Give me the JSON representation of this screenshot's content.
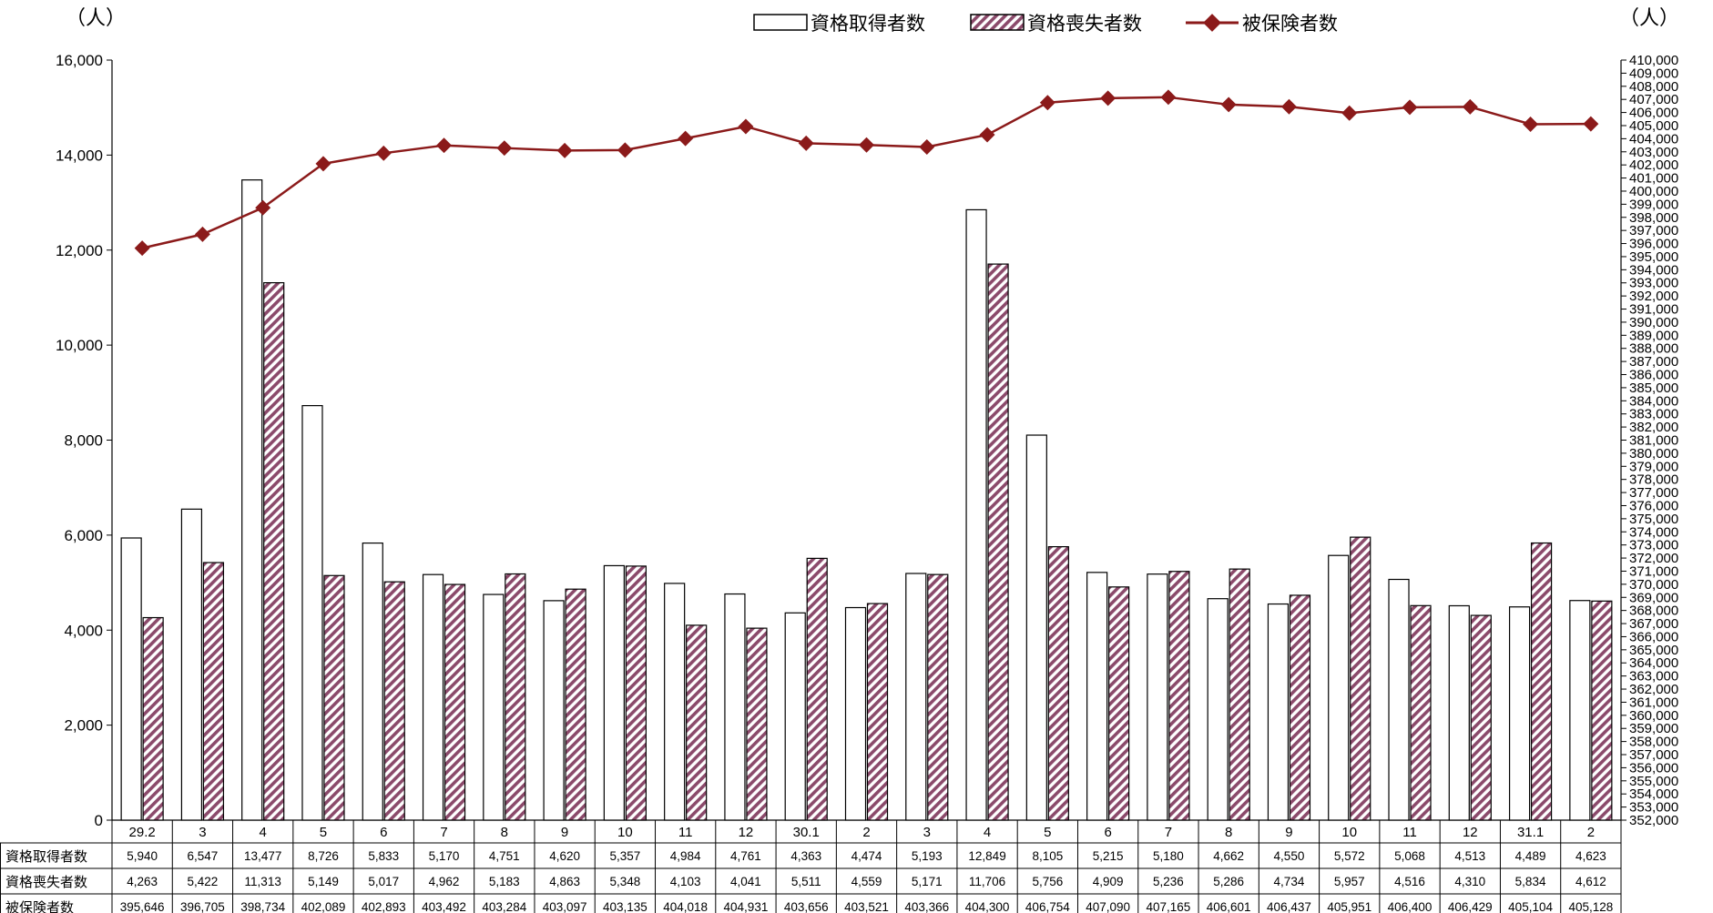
{
  "chart_data": {
    "type": "bar",
    "left_unit": "（人）",
    "right_unit": "（人）",
    "categories": [
      "29.2",
      "3",
      "4",
      "5",
      "6",
      "7",
      "8",
      "9",
      "10",
      "11",
      "12",
      "30.1",
      "2",
      "3",
      "4",
      "5",
      "6",
      "7",
      "8",
      "9",
      "10",
      "11",
      "12",
      "31.1",
      "2"
    ],
    "y_left": {
      "min": 0,
      "max": 16000,
      "ticks": [
        "0",
        "2,000",
        "4,000",
        "6,000",
        "8,000",
        "10,000",
        "12,000",
        "14,000",
        "16,000"
      ]
    },
    "y_right": {
      "min": 352000,
      "max": 410000,
      "step": 1000
    },
    "legend_position": "top-center",
    "series": [
      {
        "name": "資格取得者数",
        "type": "bar",
        "style": "white-outline",
        "values": [
          5940,
          6547,
          13477,
          8726,
          5833,
          5170,
          4751,
          4620,
          5357,
          4984,
          4761,
          4363,
          4474,
          5193,
          12849,
          8105,
          5215,
          5180,
          4662,
          4550,
          5572,
          5068,
          4513,
          4489,
          4623
        ],
        "labels": [
          "5,940",
          "6,547",
          "13,477",
          "8,726",
          "5,833",
          "5,170",
          "4,751",
          "4,620",
          "5,357",
          "4,984",
          "4,761",
          "4,363",
          "4,474",
          "5,193",
          "12,849",
          "8,105",
          "5,215",
          "5,180",
          "4,662",
          "4,550",
          "5,572",
          "5,068",
          "4,513",
          "4,489",
          "4,623"
        ]
      },
      {
        "name": "資格喪失者数",
        "type": "bar",
        "style": "hatched",
        "values": [
          4263,
          5422,
          11313,
          5149,
          5017,
          4962,
          5183,
          4863,
          5348,
          4103,
          4041,
          5511,
          4559,
          5171,
          11706,
          5756,
          4909,
          5236,
          5286,
          4734,
          5957,
          4516,
          4310,
          5834,
          4612
        ],
        "labels": [
          "4,263",
          "5,422",
          "11,313",
          "5,149",
          "5,017",
          "4,962",
          "5,183",
          "4,863",
          "5,348",
          "4,103",
          "4,041",
          "5,511",
          "4,559",
          "5,171",
          "11,706",
          "5,756",
          "4,909",
          "5,236",
          "5,286",
          "4,734",
          "5,957",
          "4,516",
          "4,310",
          "5,834",
          "4,612"
        ]
      },
      {
        "name": "被保険者数",
        "type": "line",
        "axis": "right",
        "values": [
          395646,
          396705,
          398734,
          402089,
          402893,
          403492,
          403284,
          403097,
          403135,
          404018,
          404931,
          403656,
          403521,
          403366,
          404300,
          406754,
          407090,
          407165,
          406601,
          406437,
          405951,
          406400,
          406429,
          405104,
          405128
        ],
        "labels": [
          "395,646",
          "396,705",
          "398,734",
          "402,089",
          "402,893",
          "403,492",
          "403,284",
          "403,097",
          "403,135",
          "404,018",
          "404,931",
          "403,656",
          "403,521",
          "403,366",
          "404,300",
          "406,754",
          "407,090",
          "407,165",
          "406,601",
          "406,437",
          "405,951",
          "406,400",
          "406,429",
          "405,104",
          "405,128"
        ]
      }
    ],
    "colors": {
      "line": "#8b1a1a",
      "hatch": "#8b4a6b",
      "hatch_bg": "#ffffff"
    }
  }
}
